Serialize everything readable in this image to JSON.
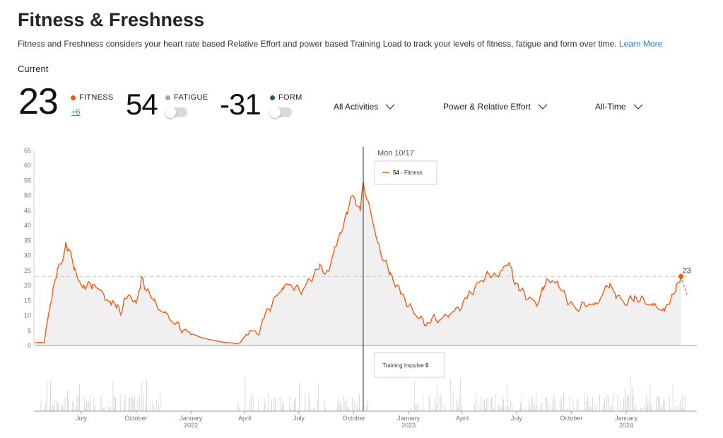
{
  "header": {
    "title": "Fitness & Freshness",
    "description": "Fitness and Freshness considers your heart rate based Relative Effort and power based Training Load to track your levels of fitness, fatigue and form over time.",
    "learn_more": "Learn More",
    "current_label": "Current"
  },
  "metrics": {
    "fitness": {
      "value": "23",
      "label": "FITNESS",
      "delta": "+6",
      "color": "#fc5200"
    },
    "fatigue": {
      "value": "54",
      "label": "FATIGUE",
      "color": "#9e9e9e",
      "toggle_on": false
    },
    "form": {
      "value": "-31",
      "label": "FORM",
      "color": "#2b5a6b",
      "toggle_on": false
    }
  },
  "filters": {
    "activities": "All Activities",
    "metric_type": "Power & Relative Effort",
    "range": "All-Time"
  },
  "colors": {
    "fitness_line": "#fc5200",
    "area_fill": "#f0f0f0",
    "impulse_bars": "#cfcfcf"
  },
  "chart_data": {
    "type": "area",
    "series": [
      {
        "name": "Fitness",
        "x_start": "2021-04-15",
        "x_end": "2024-04-12",
        "points": [
          [
            "2021-04-15",
            1
          ],
          [
            "2021-04-30",
            1
          ],
          [
            "2021-05-05",
            8
          ],
          [
            "2021-05-12",
            15
          ],
          [
            "2021-05-22",
            25
          ],
          [
            "2021-06-01",
            30
          ],
          [
            "2021-06-05",
            34
          ],
          [
            "2021-06-10",
            32
          ],
          [
            "2021-06-20",
            26
          ],
          [
            "2021-06-28",
            21
          ],
          [
            "2021-07-05",
            19
          ],
          [
            "2021-07-10",
            20
          ],
          [
            "2021-07-20",
            20
          ],
          [
            "2021-07-30",
            20
          ],
          [
            "2021-08-10",
            16
          ],
          [
            "2021-08-20",
            14
          ],
          [
            "2021-08-30",
            13
          ],
          [
            "2021-09-05",
            11
          ],
          [
            "2021-09-12",
            16
          ],
          [
            "2021-09-20",
            17
          ],
          [
            "2021-10-01",
            14
          ],
          [
            "2021-10-05",
            18
          ],
          [
            "2021-10-10",
            22
          ],
          [
            "2021-10-15",
            20
          ],
          [
            "2021-10-25",
            16
          ],
          [
            "2021-11-01",
            14
          ],
          [
            "2021-11-20",
            10
          ],
          [
            "2021-12-20",
            5
          ],
          [
            "2022-01-20",
            2.5
          ],
          [
            "2022-02-20",
            1.2
          ],
          [
            "2022-03-20",
            0.6
          ],
          [
            "2022-03-25",
            1
          ],
          [
            "2022-04-01",
            3
          ],
          [
            "2022-04-10",
            5
          ],
          [
            "2022-04-25",
            3.5
          ],
          [
            "2022-05-05",
            10
          ],
          [
            "2022-05-20",
            15
          ],
          [
            "2022-06-05",
            20
          ],
          [
            "2022-06-20",
            20
          ],
          [
            "2022-07-05",
            18
          ],
          [
            "2022-07-20",
            22
          ],
          [
            "2022-08-05",
            26
          ],
          [
            "2022-08-20",
            24
          ],
          [
            "2022-08-30",
            33
          ],
          [
            "2022-09-10",
            38
          ],
          [
            "2022-09-20",
            45
          ],
          [
            "2022-09-30",
            50
          ],
          [
            "2022-10-05",
            47
          ],
          [
            "2022-10-12",
            46
          ],
          [
            "2022-10-17",
            54
          ],
          [
            "2022-10-20",
            52
          ],
          [
            "2022-11-01",
            42
          ],
          [
            "2022-11-15",
            31
          ],
          [
            "2022-12-01",
            24
          ],
          [
            "2022-12-20",
            17
          ],
          [
            "2023-01-10",
            11
          ],
          [
            "2023-01-25",
            8
          ],
          [
            "2023-02-01",
            7.5
          ],
          [
            "2023-02-10",
            9
          ],
          [
            "2023-02-25",
            8.5
          ],
          [
            "2023-03-10",
            11
          ],
          [
            "2023-03-25",
            12
          ],
          [
            "2023-04-10",
            16
          ],
          [
            "2023-04-25",
            20
          ],
          [
            "2023-05-10",
            23
          ],
          [
            "2023-05-25",
            24
          ],
          [
            "2023-06-01",
            22
          ],
          [
            "2023-06-10",
            27
          ],
          [
            "2023-06-20",
            27
          ],
          [
            "2023-06-25",
            23
          ],
          [
            "2023-07-05",
            19
          ],
          [
            "2023-07-20",
            16
          ],
          [
            "2023-08-05",
            14
          ],
          [
            "2023-08-15",
            20
          ],
          [
            "2023-08-30",
            22
          ],
          [
            "2023-09-10",
            20
          ],
          [
            "2023-09-25",
            15
          ],
          [
            "2023-10-10",
            12
          ],
          [
            "2023-10-25",
            14
          ],
          [
            "2023-11-10",
            13
          ],
          [
            "2023-11-25",
            18
          ],
          [
            "2023-12-05",
            21
          ],
          [
            "2023-12-15",
            17
          ],
          [
            "2023-12-30",
            14
          ],
          [
            "2024-01-15",
            16
          ],
          [
            "2024-01-30",
            15
          ],
          [
            "2024-02-15",
            13
          ],
          [
            "2024-03-05",
            12
          ],
          [
            "2024-03-15",
            14
          ],
          [
            "2024-03-25",
            20
          ],
          [
            "2024-04-02",
            23
          ]
        ]
      }
    ],
    "projection": [
      [
        "2024-04-02",
        23
      ],
      [
        "2024-04-12",
        17
      ]
    ],
    "ylim": [
      0,
      65
    ],
    "yticks": [
      0,
      5,
      10,
      15,
      20,
      25,
      30,
      35,
      40,
      45,
      50,
      55,
      60,
      65
    ],
    "reference_line": 23,
    "end_label": "23",
    "xticks": [
      {
        "date": "2021-07-01",
        "label": "July"
      },
      {
        "date": "2021-10-01",
        "label": "October"
      },
      {
        "date": "2022-01-01",
        "label": "January",
        "sublabel": "2022"
      },
      {
        "date": "2022-04-01",
        "label": "April"
      },
      {
        "date": "2022-07-01",
        "label": "July"
      },
      {
        "date": "2022-10-01",
        "label": "October"
      },
      {
        "date": "2023-01-01",
        "label": "January",
        "sublabel": "2023"
      },
      {
        "date": "2023-04-01",
        "label": "April"
      },
      {
        "date": "2023-07-01",
        "label": "July"
      },
      {
        "date": "2023-10-01",
        "label": "October"
      },
      {
        "date": "2024-01-01",
        "label": "January",
        "sublabel": "2024"
      }
    ],
    "hover": {
      "date": "2022-10-17",
      "date_label": "Mon 10/17",
      "fitness_value": "54",
      "fitness_suffix": " - Fitness",
      "impulse_label": "Training Impulse",
      "impulse_value": "0"
    }
  }
}
